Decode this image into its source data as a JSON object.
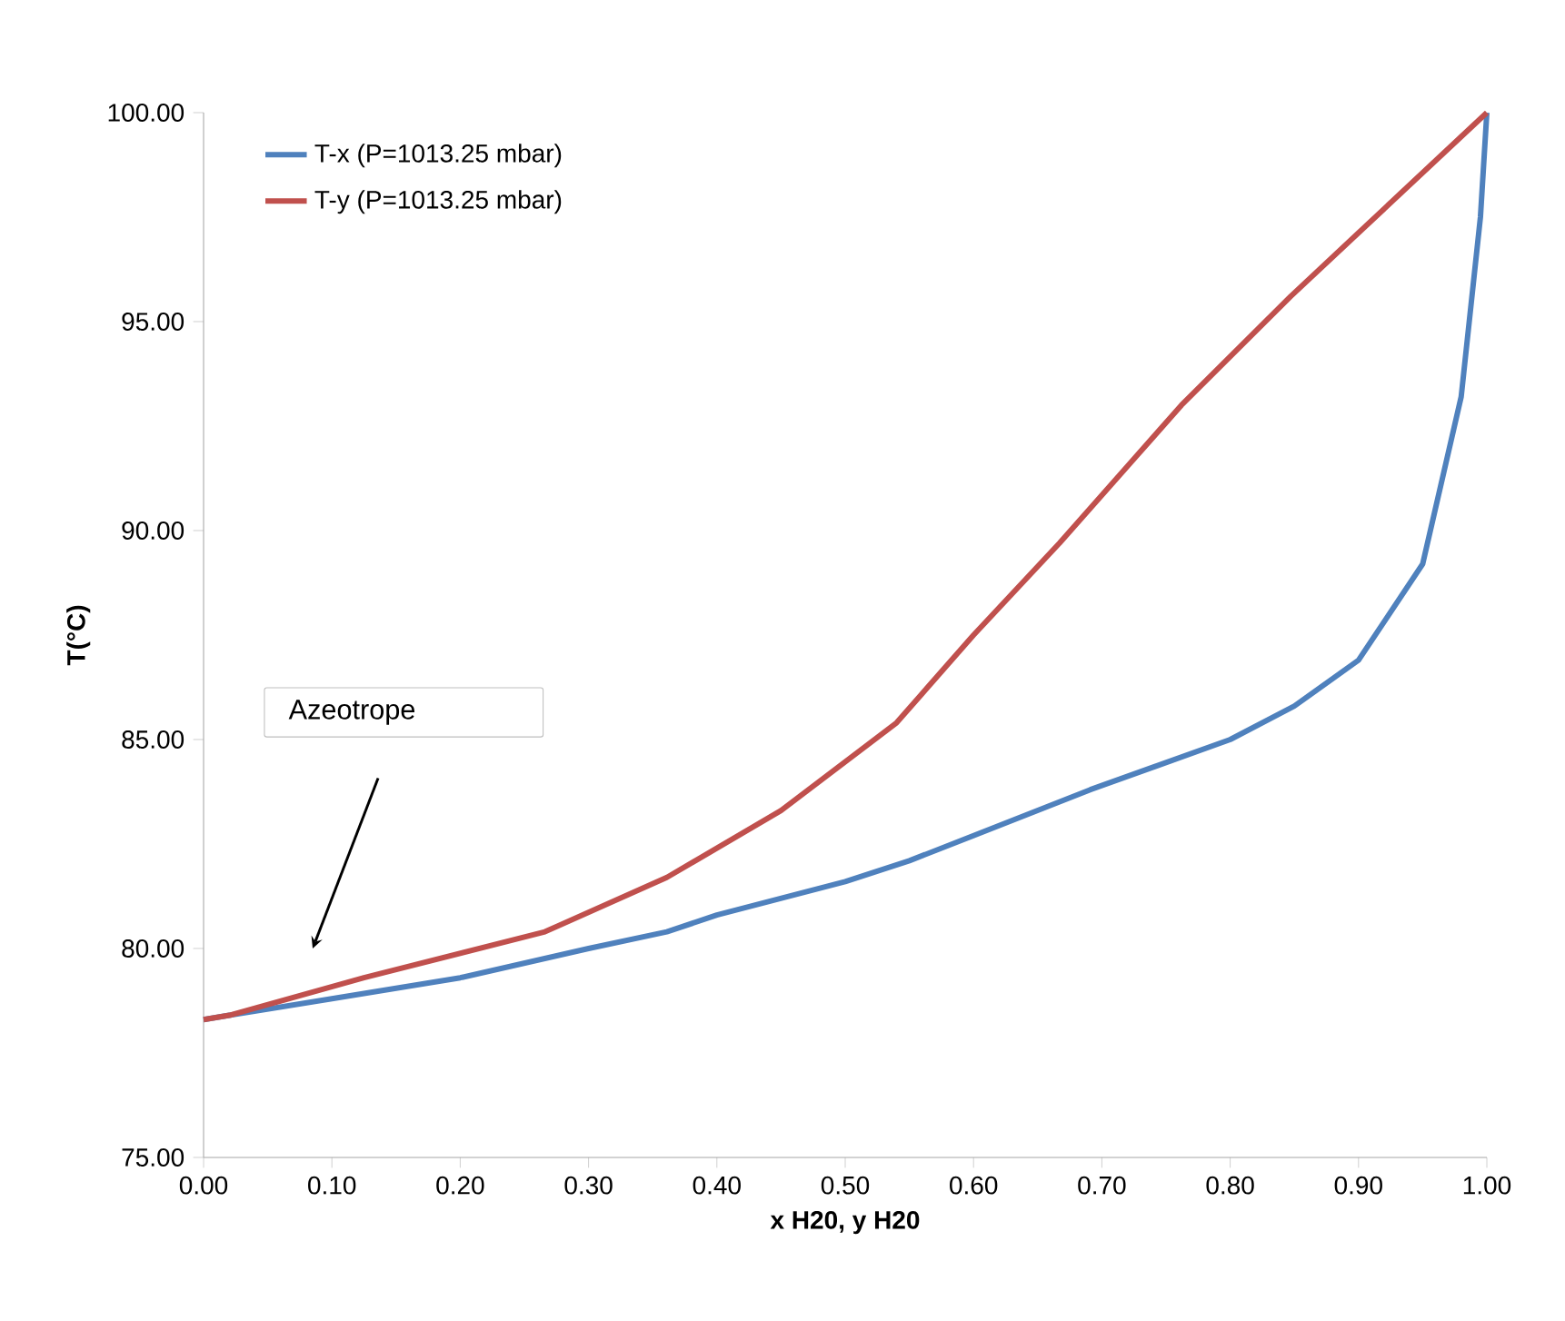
{
  "chart_data": {
    "type": "line",
    "xlabel": "x H20, y H20",
    "ylabel": "T(°C)",
    "series": [
      {
        "name": "T-x (P=1013.25 mbar)",
        "color": "#4f81bd",
        "x": [
          0,
          0.02,
          0.1,
          0.2,
          0.3,
          0.361,
          0.4,
          0.5,
          0.55,
          0.6,
          0.691,
          0.8,
          0.85,
          0.9,
          0.95,
          0.98,
          0.995,
          1.0
        ],
        "values": [
          78.3,
          78.4,
          78.8,
          79.3,
          80.0,
          80.4,
          80.8,
          81.6,
          82.1,
          82.7,
          83.8,
          85.0,
          85.8,
          86.9,
          89.2,
          93.2,
          97.5,
          100
        ]
      },
      {
        "name": "T-y (P=1013.25 mbar)",
        "color": "#c0504d",
        "x": [
          0,
          0.02,
          0.125,
          0.266,
          0.361,
          0.45,
          0.54,
          0.6,
          0.667,
          0.762,
          0.847,
          1.0
        ],
        "values": [
          78.3,
          78.4,
          79.3,
          80.4,
          81.7,
          83.3,
          85.4,
          87.5,
          89.7,
          93.0,
          95.6,
          100
        ]
      }
    ],
    "xlim": [
      0,
      1
    ],
    "ylim": [
      75,
      100
    ],
    "xticks": [
      {
        "value": 0,
        "label": "0.00"
      },
      {
        "value": 0.1,
        "label": "0.10"
      },
      {
        "value": 0.2,
        "label": "0.20"
      },
      {
        "value": 0.3,
        "label": "0.30"
      },
      {
        "value": 0.4,
        "label": "0.40"
      },
      {
        "value": 0.5,
        "label": "0.50"
      },
      {
        "value": 0.6,
        "label": "0.60"
      },
      {
        "value": 0.7,
        "label": "0.70"
      },
      {
        "value": 0.8,
        "label": "0.80"
      },
      {
        "value": 0.9,
        "label": "0.90"
      },
      {
        "value": 1,
        "label": "1.00"
      }
    ],
    "yticks": [
      {
        "value": 75,
        "label": "75.00"
      },
      {
        "value": 80,
        "label": "80.00"
      },
      {
        "value": 85,
        "label": "85.00"
      },
      {
        "value": 90,
        "label": "90.00"
      },
      {
        "value": 95,
        "label": "95.00"
      },
      {
        "value": 100,
        "label": "100.00"
      }
    ],
    "annotations": [
      "Azeotrope"
    ],
    "legend": "top left",
    "grid": false,
    "marker": "none",
    "line_style": "solid"
  }
}
